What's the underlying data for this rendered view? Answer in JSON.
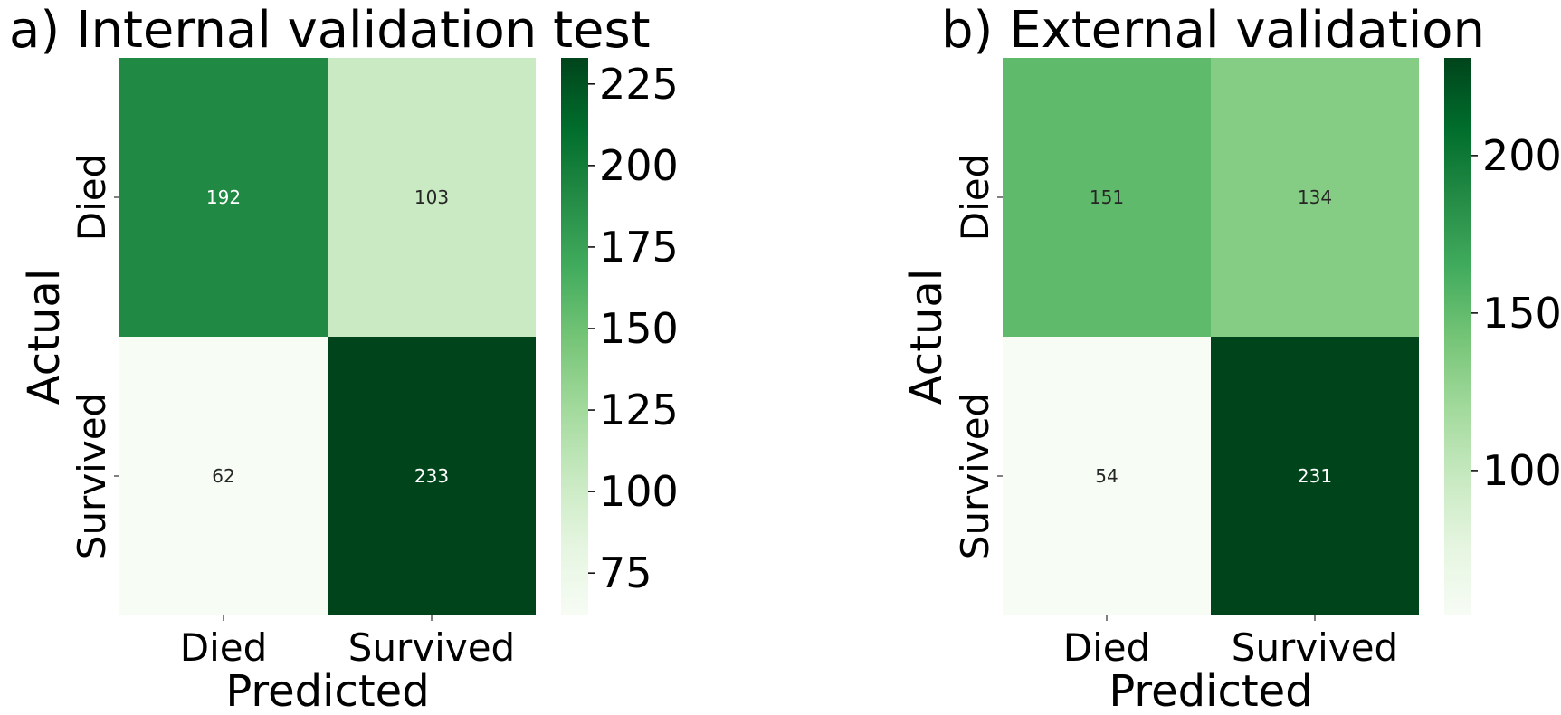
{
  "chart_data": [
    {
      "type": "heatmap",
      "title": "a) Internal validation test",
      "xlabel": "Predicted",
      "ylabel": "Actual",
      "x_categories": [
        "Died",
        "Survived"
      ],
      "y_categories": [
        "Died",
        "Survived"
      ],
      "values": [
        [
          192,
          103
        ],
        [
          62,
          233
        ]
      ],
      "colormap": "Greens",
      "colorbar": {
        "range": [
          62,
          233
        ],
        "ticks": [
          75,
          100,
          125,
          150,
          175,
          200,
          225
        ]
      }
    },
    {
      "type": "heatmap",
      "title": "b) External validation",
      "xlabel": "Predicted",
      "ylabel": "Actual",
      "x_categories": [
        "Died",
        "Survived"
      ],
      "y_categories": [
        "Died",
        "Survived"
      ],
      "values": [
        [
          151,
          134
        ],
        [
          54,
          231
        ]
      ],
      "colormap": "Greens",
      "colorbar": {
        "range": [
          54,
          231
        ],
        "ticks": [
          100,
          150,
          200
        ]
      }
    }
  ]
}
